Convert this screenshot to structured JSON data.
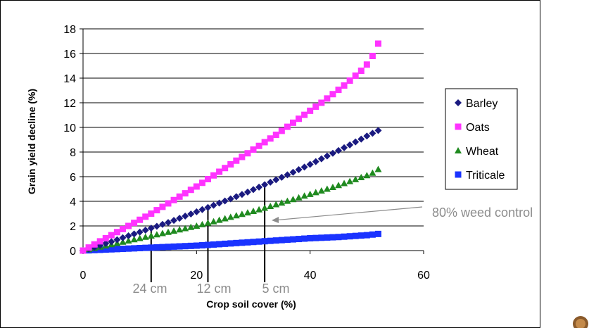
{
  "chart_data": {
    "type": "scatter",
    "title": "",
    "xlabel": "Crop soil cover (%)",
    "ylabel": "Grain yield decline (%)",
    "xlim": [
      0,
      60
    ],
    "ylim": [
      0,
      18
    ],
    "xticks": [
      "0",
      "20",
      "40",
      "60"
    ],
    "yticks": [
      "0",
      "2",
      "4",
      "6",
      "8",
      "10",
      "12",
      "14",
      "16",
      "18"
    ],
    "grid": "horizontal",
    "legend_position": "right",
    "x": [
      0,
      1,
      2,
      3,
      4,
      5,
      6,
      7,
      8,
      9,
      10,
      11,
      12,
      13,
      14,
      15,
      16,
      17,
      18,
      19,
      20,
      21,
      22,
      23,
      24,
      25,
      26,
      27,
      28,
      29,
      30,
      31,
      32,
      33,
      34,
      35,
      36,
      37,
      38,
      39,
      40,
      41,
      42,
      43,
      44,
      45,
      46,
      47,
      48,
      49,
      50,
      51,
      52
    ],
    "series": [
      {
        "name": "Barley",
        "color": "#1a1a80",
        "marker": "diamond",
        "values": [
          0.0,
          0.13,
          0.27,
          0.42,
          0.58,
          0.72,
          0.88,
          1.04,
          1.2,
          1.35,
          1.5,
          1.66,
          1.82,
          1.97,
          2.13,
          2.28,
          2.45,
          2.62,
          2.8,
          2.97,
          3.15,
          3.33,
          3.5,
          3.68,
          3.86,
          4.03,
          4.2,
          4.38,
          4.56,
          4.75,
          4.95,
          5.15,
          5.35,
          5.55,
          5.75,
          5.95,
          6.15,
          6.36,
          6.57,
          6.78,
          7.0,
          7.22,
          7.45,
          7.68,
          7.9,
          8.12,
          8.35,
          8.58,
          8.82,
          9.05,
          9.3,
          9.52,
          9.75
        ]
      },
      {
        "name": "Oats",
        "color": "#ff33ff",
        "marker": "square",
        "values": [
          0.0,
          0.25,
          0.5,
          0.75,
          1.0,
          1.25,
          1.5,
          1.75,
          2.0,
          2.25,
          2.5,
          2.75,
          3.0,
          3.28,
          3.55,
          3.83,
          4.1,
          4.38,
          4.65,
          4.93,
          5.2,
          5.5,
          5.8,
          6.1,
          6.4,
          6.7,
          7.0,
          7.3,
          7.6,
          7.9,
          8.2,
          8.5,
          8.8,
          9.1,
          9.4,
          9.72,
          10.05,
          10.38,
          10.7,
          11.02,
          11.35,
          11.68,
          12.0,
          12.35,
          12.7,
          13.05,
          13.4,
          13.8,
          14.2,
          14.6,
          15.1,
          15.8,
          16.8
        ]
      },
      {
        "name": "Wheat",
        "color": "#1f8a1f",
        "marker": "triangle",
        "values": [
          0.0,
          0.1,
          0.2,
          0.3,
          0.4,
          0.5,
          0.6,
          0.7,
          0.8,
          0.9,
          1.0,
          1.1,
          1.2,
          1.3,
          1.4,
          1.5,
          1.6,
          1.7,
          1.8,
          1.9,
          2.0,
          2.12,
          2.24,
          2.36,
          2.48,
          2.6,
          2.72,
          2.84,
          2.96,
          3.08,
          3.2,
          3.33,
          3.46,
          3.6,
          3.74,
          3.88,
          4.02,
          4.16,
          4.3,
          4.44,
          4.58,
          4.72,
          4.86,
          5.0,
          5.14,
          5.3,
          5.46,
          5.62,
          5.78,
          5.94,
          6.1,
          6.3,
          6.6
        ]
      },
      {
        "name": "Triticale",
        "color": "#1a33ff",
        "marker": "square",
        "values": [
          0.0,
          0.02,
          0.04,
          0.06,
          0.08,
          0.1,
          0.12,
          0.14,
          0.16,
          0.18,
          0.2,
          0.22,
          0.24,
          0.26,
          0.28,
          0.3,
          0.32,
          0.34,
          0.36,
          0.38,
          0.4,
          0.43,
          0.46,
          0.49,
          0.52,
          0.55,
          0.58,
          0.61,
          0.64,
          0.67,
          0.7,
          0.73,
          0.76,
          0.79,
          0.82,
          0.85,
          0.88,
          0.91,
          0.94,
          0.97,
          1.0,
          1.02,
          1.04,
          1.06,
          1.08,
          1.1,
          1.13,
          1.16,
          1.19,
          1.22,
          1.25,
          1.3,
          1.35
        ]
      }
    ],
    "annotations": [
      {
        "text": "80% weed control",
        "color": "#8c8c8c"
      },
      {
        "text": "24 cm",
        "x": 12,
        "color": "#8c8c8c"
      },
      {
        "text": "12 cm",
        "x": 22,
        "color": "#8c8c8c"
      },
      {
        "text": "5 cm",
        "x": 32,
        "color": "#8c8c8c"
      }
    ],
    "vlines": [
      {
        "x": 12,
        "y_top": 1.8
      },
      {
        "x": 22,
        "y_top": 3.5
      },
      {
        "x": 32,
        "y_top": 5.4
      }
    ]
  }
}
